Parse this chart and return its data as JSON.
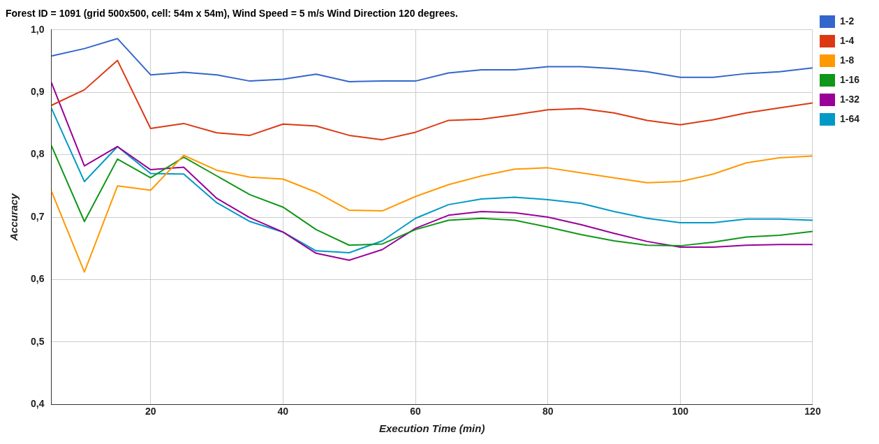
{
  "chart_data": {
    "type": "line",
    "title": "Forest ID = 1091 (grid 500x500, cell: 54m x 54m), Wind Speed = 5 m/s Wind Direction 120 degrees.",
    "xlabel": "Execution Time (min)",
    "ylabel": "Accuracy",
    "x": [
      5,
      10,
      15,
      20,
      25,
      30,
      35,
      40,
      45,
      50,
      55,
      60,
      65,
      70,
      75,
      80,
      85,
      90,
      95,
      100,
      105,
      110,
      115,
      120
    ],
    "series": [
      {
        "name": "1-2",
        "color": "#3366cc",
        "values": [
          0.958,
          0.97,
          0.986,
          0.928,
          0.932,
          0.928,
          0.918,
          0.921,
          0.929,
          0.917,
          0.918,
          0.918,
          0.931,
          0.936,
          0.936,
          0.941,
          0.941,
          0.938,
          0.933,
          0.924,
          0.924,
          0.93,
          0.933,
          0.939
        ]
      },
      {
        "name": "1-4",
        "color": "#dc3912",
        "values": [
          0.879,
          0.904,
          0.951,
          0.842,
          0.85,
          0.835,
          0.831,
          0.849,
          0.846,
          0.831,
          0.824,
          0.836,
          0.855,
          0.857,
          0.864,
          0.872,
          0.874,
          0.867,
          0.855,
          0.848,
          0.856,
          0.867,
          0.875,
          0.883
        ]
      },
      {
        "name": "1-8",
        "color": "#ff9900",
        "values": [
          0.742,
          0.612,
          0.75,
          0.743,
          0.799,
          0.775,
          0.764,
          0.761,
          0.74,
          0.711,
          0.71,
          0.733,
          0.752,
          0.766,
          0.777,
          0.779,
          0.771,
          0.763,
          0.755,
          0.757,
          0.769,
          0.787,
          0.795,
          0.798
        ]
      },
      {
        "name": "1-16",
        "color": "#109618",
        "values": [
          0.815,
          0.693,
          0.793,
          0.763,
          0.796,
          0.766,
          0.736,
          0.716,
          0.68,
          0.655,
          0.657,
          0.68,
          0.695,
          0.698,
          0.695,
          0.684,
          0.672,
          0.662,
          0.655,
          0.654,
          0.66,
          0.668,
          0.671,
          0.677
        ]
      },
      {
        "name": "1-32",
        "color": "#990099",
        "values": [
          0.916,
          0.782,
          0.813,
          0.776,
          0.78,
          0.73,
          0.699,
          0.676,
          0.642,
          0.631,
          0.648,
          0.682,
          0.703,
          0.709,
          0.707,
          0.7,
          0.688,
          0.674,
          0.661,
          0.652,
          0.652,
          0.655,
          0.656,
          0.656
        ]
      },
      {
        "name": "1-64",
        "color": "#0099c6",
        "values": [
          0.875,
          0.757,
          0.813,
          0.77,
          0.769,
          0.723,
          0.693,
          0.676,
          0.646,
          0.643,
          0.662,
          0.698,
          0.72,
          0.729,
          0.732,
          0.728,
          0.722,
          0.709,
          0.698,
          0.691,
          0.691,
          0.697,
          0.697,
          0.695
        ]
      }
    ],
    "xlim": [
      5,
      120
    ],
    "xticks": [
      20,
      40,
      60,
      80,
      100,
      120
    ],
    "ylim": [
      0.4,
      1.0
    ],
    "yticks": [
      {
        "value": 0.4,
        "label": "0,4"
      },
      {
        "value": 0.5,
        "label": "0,5"
      },
      {
        "value": 0.6,
        "label": "0,6"
      },
      {
        "value": 0.7,
        "label": "0,7"
      },
      {
        "value": 0.8,
        "label": "0,8"
      },
      {
        "value": 0.9,
        "label": "0,9"
      },
      {
        "value": 1.0,
        "label": "1,0"
      }
    ],
    "grid": true,
    "legend": "top right",
    "marker": "none",
    "line_style": "solid"
  }
}
